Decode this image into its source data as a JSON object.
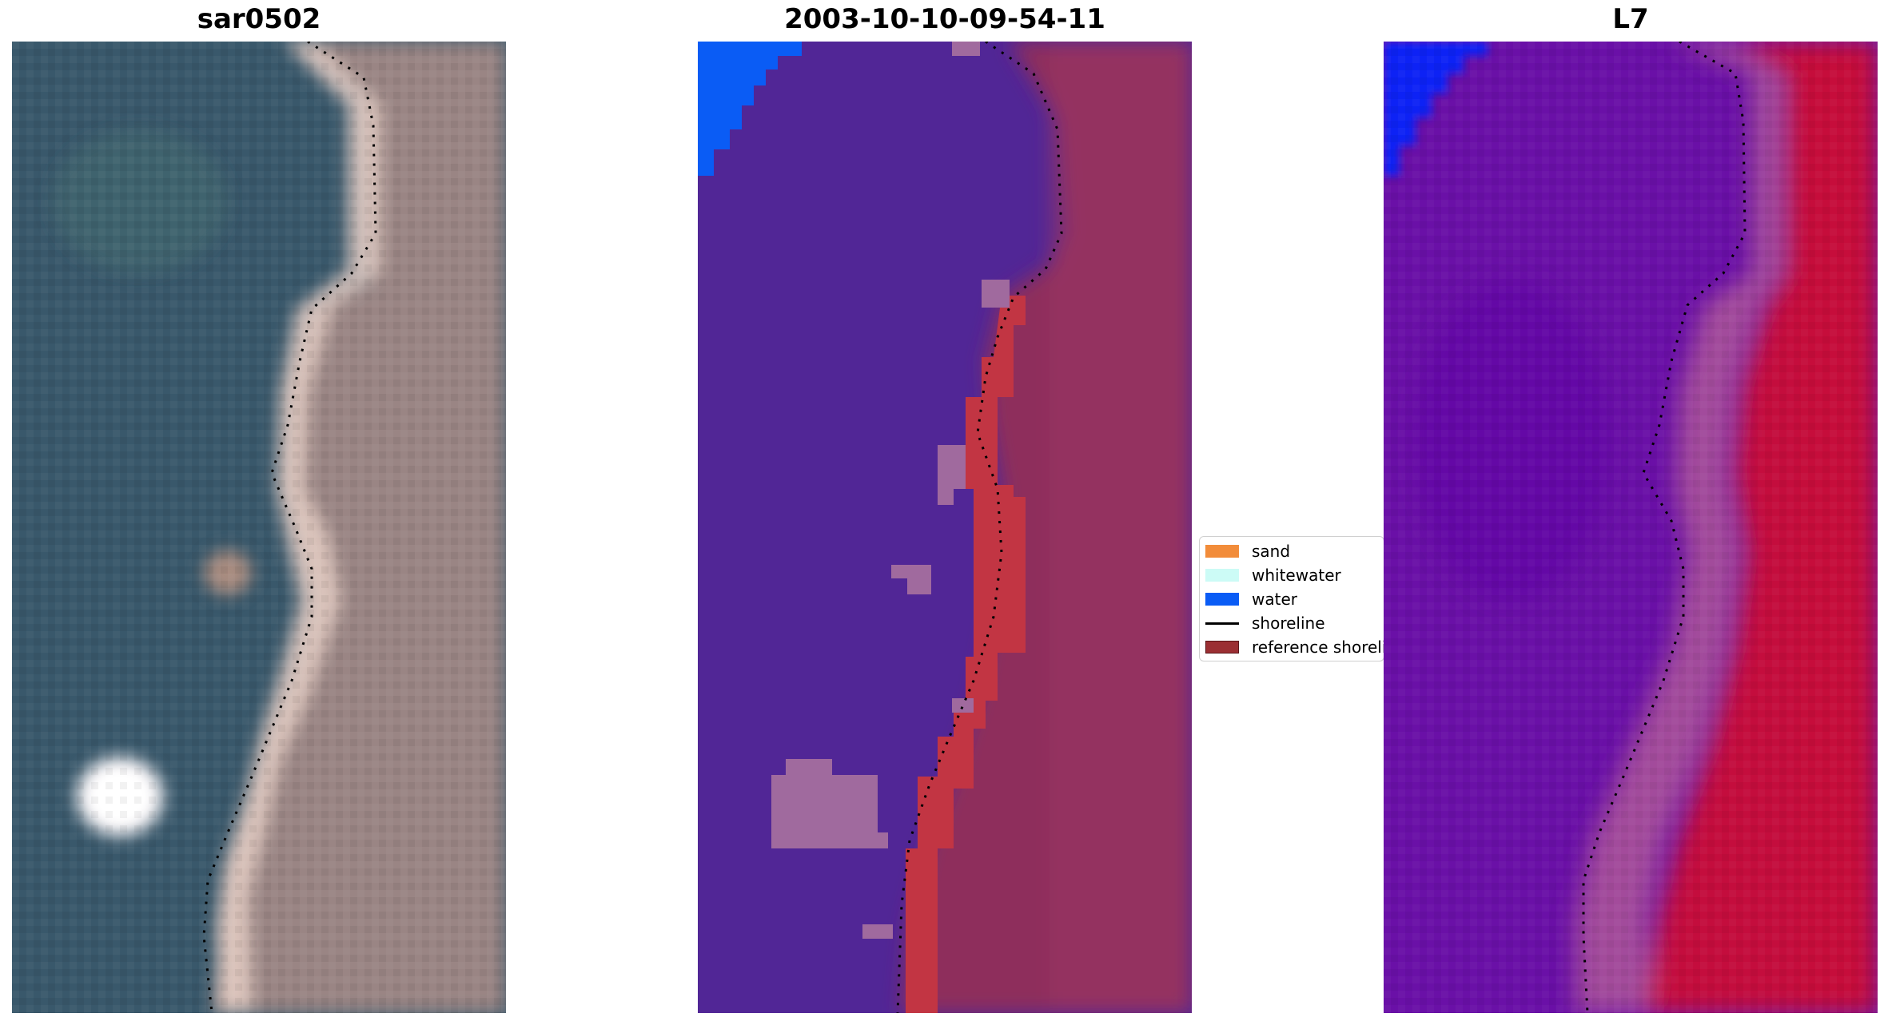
{
  "panels": [
    {
      "title": "sar0502"
    },
    {
      "title": "2003-10-10-09-54-11"
    },
    {
      "title": "L7"
    }
  ],
  "legend": {
    "items": [
      {
        "label": "sand",
        "color": "#f28c3a"
      },
      {
        "label": "whitewater",
        "color": "#ccfbf6"
      },
      {
        "label": "water",
        "color": "#0a5cf5"
      },
      {
        "label": "shoreline",
        "color": "#000000"
      },
      {
        "label": "reference shoreline",
        "color": "#9b2f33"
      }
    ]
  },
  "colors": {
    "rgb_water": "#39586b",
    "rgb_land": "#9a8584",
    "rgb_beach": "#e8cfc5",
    "class_water": "#512696",
    "class_land": "#8e2f5c",
    "class_ref": "#c23543",
    "class_blob": "#a06a9e",
    "index_water": "#6a10a7",
    "index_land": "#c40e3e",
    "index_blue": "#1022f5"
  }
}
